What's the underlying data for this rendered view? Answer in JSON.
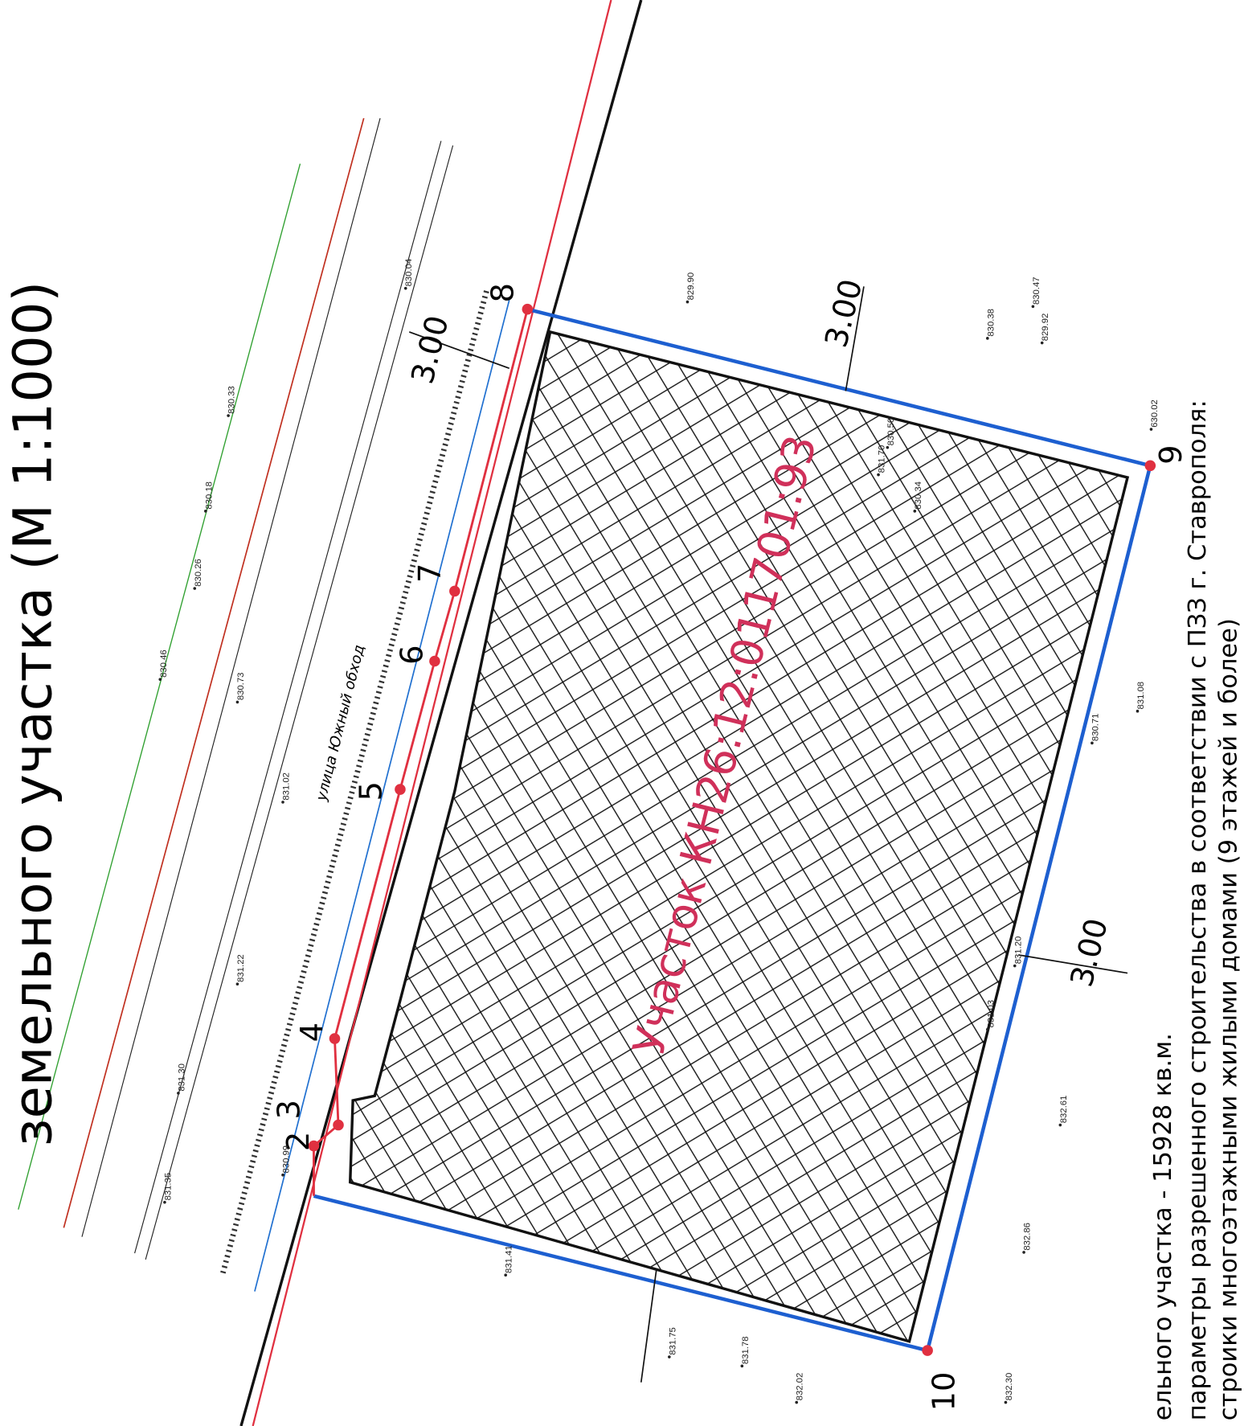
{
  "title": "земельного участка (М 1:1000)",
  "parcel_label": "Участок КН26:12:011701:93",
  "street_label": "улица Южный обход",
  "dimensions": [
    "3.00",
    "3.00",
    "3.00"
  ],
  "points": [
    "2",
    "3",
    "4",
    "5",
    "6",
    "7",
    "8",
    "9",
    "10"
  ],
  "notes": [
    "ельного участка - 15928 кв.м.",
    "параметры разрешенного строительства в соответствии с ПЗЗ г. Ставрополя:",
    "строики многоэтажными жилыми домами (9 этажей и более)"
  ],
  "elevations": [
    "830.33",
    "830.18",
    "830.26",
    "830.46",
    "830.73",
    "831.02",
    "831.22",
    "831.30",
    "831.35",
    "830.99",
    "829.90",
    "830.04",
    "830.47",
    "830.38",
    "829.92",
    "630.02",
    "831.78",
    "832.02",
    "832.30",
    "831.75",
    "831.41",
    "830.50",
    "831.70",
    "830.34",
    "831.20",
    "831.03",
    "832.61",
    "832.86",
    "831.08",
    "830.71"
  ]
}
